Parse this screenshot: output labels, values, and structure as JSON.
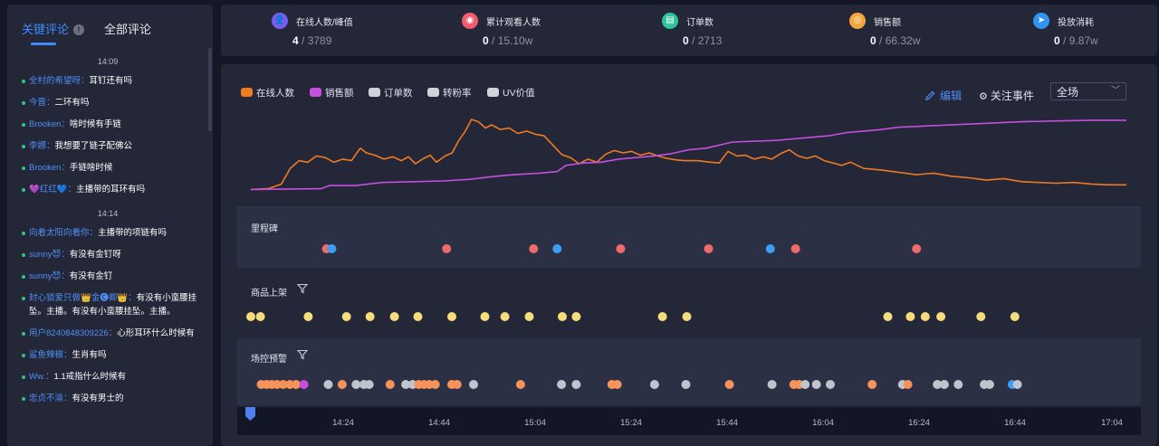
{
  "left_panel": {
    "tabs": [
      {
        "label": "关键评论",
        "active": true
      },
      {
        "label": "全部评论",
        "active": false
      }
    ],
    "info_glyph": "!",
    "comments": [
      {
        "type": "time",
        "text": "14:09"
      },
      {
        "type": "comment",
        "user": "全村的希望呀：",
        "text": "耳钉还有吗"
      },
      {
        "type": "comment",
        "user": "今晋：",
        "text": "二环有吗"
      },
      {
        "type": "comment",
        "user": "Brooken：",
        "text": "啥时候有手链"
      },
      {
        "type": "comment",
        "user": "李娜：",
        "text": "我想要了链子配佛公"
      },
      {
        "type": "comment",
        "user": "Brooken：",
        "text": "手链啥时候"
      },
      {
        "type": "comment",
        "user": "💜红红💙：",
        "text": "主播带的耳环有吗"
      },
      {
        "type": "time",
        "text": "14:14"
      },
      {
        "type": "comment",
        "user": "向着太阳向着你：",
        "text": "主播带的项链有吗"
      },
      {
        "type": "comment",
        "user": "sunny😈：",
        "text": "有没有金钉呀"
      },
      {
        "type": "comment",
        "user": "sunny😈：",
        "text": "有没有金钉"
      },
      {
        "type": "comment",
        "user": "封心锁爱只做👑金🅒卿👑：",
        "text": "有没有小蛮腰挂坠。主播。有没有小蛮腰挂坠。主播。"
      },
      {
        "type": "comment",
        "user": "用户8240848309226：",
        "text": "心形耳环什么时候有"
      },
      {
        "type": "comment",
        "user": "鲨鱼辣椒：",
        "text": "生肖有吗"
      },
      {
        "type": "comment",
        "user": "Ww.：",
        "text": "1.1戒指什么时候有"
      },
      {
        "type": "comment",
        "user": "忠贞不渝：",
        "text": "有没有男士的"
      }
    ]
  },
  "stats": [
    {
      "icon": "user-icon",
      "glyph": "👤",
      "color": "#7a5cf5",
      "label": "在线人数/峰值",
      "value": "4",
      "total": " / 3789"
    },
    {
      "icon": "eye-icon",
      "glyph": "◉",
      "color": "#f25b6b",
      "label": "累计观看人数",
      "value": "0",
      "total": " / 15.10w"
    },
    {
      "icon": "order-icon",
      "glyph": "▤",
      "color": "#2fc59a",
      "label": "订单数",
      "value": "0",
      "total": " / 2713"
    },
    {
      "icon": "coin-icon",
      "glyph": "◎",
      "color": "#f5a63b",
      "label": "销售额",
      "value": "0",
      "total": " / 66.32w"
    },
    {
      "icon": "send-icon",
      "glyph": "➤",
      "color": "#2f94f2",
      "label": "投放消耗",
      "value": "0",
      "total": " / 9.87w"
    }
  ],
  "legend": [
    {
      "label": "在线人数",
      "color": "#f07a22",
      "active": true
    },
    {
      "label": "销售额",
      "color": "#c64fe0",
      "active": true
    },
    {
      "label": "订单数",
      "color": "#cfd3dc",
      "active": false
    },
    {
      "label": "转粉率",
      "color": "#cfd3dc",
      "active": false
    },
    {
      "label": "UV价值",
      "color": "#cfd3dc",
      "active": false
    }
  ],
  "controls": {
    "edit_label": "编辑",
    "follow_label": "关注事件",
    "scope_select": "全场"
  },
  "lanes": [
    {
      "title": "里程碑",
      "has_filter": false
    },
    {
      "title": "商品上架",
      "has_filter": true
    },
    {
      "title": "场控预警",
      "has_filter": true
    }
  ],
  "chart_data": {
    "type": "line",
    "time_range": [
      "13:59",
      "17:04"
    ],
    "x_ticks": [
      "14:24",
      "14:44",
      "15:04",
      "15:24",
      "15:44",
      "16:04",
      "16:24",
      "16:44",
      "17:04"
    ],
    "ylim": [
      0,
      1
    ],
    "series": [
      {
        "name": "在线人数",
        "color": "#f07a22",
        "points": [
          [
            0,
            0.03
          ],
          [
            0.02,
            0.04
          ],
          [
            0.035,
            0.1
          ],
          [
            0.045,
            0.3
          ],
          [
            0.055,
            0.4
          ],
          [
            0.065,
            0.38
          ],
          [
            0.075,
            0.46
          ],
          [
            0.085,
            0.44
          ],
          [
            0.095,
            0.38
          ],
          [
            0.105,
            0.42
          ],
          [
            0.115,
            0.4
          ],
          [
            0.125,
            0.56
          ],
          [
            0.132,
            0.5
          ],
          [
            0.142,
            0.47
          ],
          [
            0.152,
            0.42
          ],
          [
            0.162,
            0.45
          ],
          [
            0.172,
            0.4
          ],
          [
            0.18,
            0.45
          ],
          [
            0.188,
            0.36
          ],
          [
            0.196,
            0.42
          ],
          [
            0.205,
            0.47
          ],
          [
            0.212,
            0.38
          ],
          [
            0.222,
            0.46
          ],
          [
            0.23,
            0.5
          ],
          [
            0.237,
            0.65
          ],
          [
            0.245,
            0.78
          ],
          [
            0.252,
            0.93
          ],
          [
            0.26,
            0.9
          ],
          [
            0.268,
            0.82
          ],
          [
            0.275,
            0.86
          ],
          [
            0.285,
            0.8
          ],
          [
            0.295,
            0.82
          ],
          [
            0.305,
            0.75
          ],
          [
            0.315,
            0.78
          ],
          [
            0.325,
            0.74
          ],
          [
            0.335,
            0.72
          ],
          [
            0.345,
            0.6
          ],
          [
            0.355,
            0.48
          ],
          [
            0.365,
            0.44
          ],
          [
            0.375,
            0.36
          ],
          [
            0.385,
            0.42
          ],
          [
            0.395,
            0.38
          ],
          [
            0.405,
            0.48
          ],
          [
            0.415,
            0.53
          ],
          [
            0.425,
            0.5
          ],
          [
            0.435,
            0.52
          ],
          [
            0.445,
            0.47
          ],
          [
            0.455,
            0.5
          ],
          [
            0.465,
            0.46
          ],
          [
            0.475,
            0.43
          ],
          [
            0.485,
            0.41
          ],
          [
            0.495,
            0.4
          ],
          [
            0.51,
            0.4
          ],
          [
            0.525,
            0.38
          ],
          [
            0.535,
            0.37
          ],
          [
            0.545,
            0.52
          ],
          [
            0.555,
            0.46
          ],
          [
            0.565,
            0.47
          ],
          [
            0.575,
            0.42
          ],
          [
            0.585,
            0.45
          ],
          [
            0.595,
            0.42
          ],
          [
            0.605,
            0.49
          ],
          [
            0.615,
            0.54
          ],
          [
            0.625,
            0.46
          ],
          [
            0.635,
            0.43
          ],
          [
            0.645,
            0.46
          ],
          [
            0.655,
            0.4
          ],
          [
            0.665,
            0.37
          ],
          [
            0.675,
            0.34
          ],
          [
            0.685,
            0.38
          ],
          [
            0.7,
            0.3
          ],
          [
            0.72,
            0.28
          ],
          [
            0.74,
            0.25
          ],
          [
            0.76,
            0.22
          ],
          [
            0.78,
            0.24
          ],
          [
            0.8,
            0.2
          ],
          [
            0.82,
            0.18
          ],
          [
            0.84,
            0.15
          ],
          [
            0.86,
            0.17
          ],
          [
            0.88,
            0.13
          ],
          [
            0.9,
            0.12
          ],
          [
            0.92,
            0.11
          ],
          [
            0.94,
            0.12
          ],
          [
            0.96,
            0.1
          ],
          [
            0.98,
            0.09
          ],
          [
            1,
            0.09
          ]
        ]
      },
      {
        "name": "销售额",
        "color": "#c64fe0",
        "points": [
          [
            0,
            0.03
          ],
          [
            0.08,
            0.04
          ],
          [
            0.09,
            0.08
          ],
          [
            0.12,
            0.08
          ],
          [
            0.15,
            0.12
          ],
          [
            0.22,
            0.14
          ],
          [
            0.25,
            0.16
          ],
          [
            0.28,
            0.2
          ],
          [
            0.3,
            0.22
          ],
          [
            0.33,
            0.24
          ],
          [
            0.35,
            0.26
          ],
          [
            0.36,
            0.34
          ],
          [
            0.38,
            0.37
          ],
          [
            0.4,
            0.38
          ],
          [
            0.42,
            0.42
          ],
          [
            0.44,
            0.44
          ],
          [
            0.46,
            0.46
          ],
          [
            0.48,
            0.49
          ],
          [
            0.5,
            0.54
          ],
          [
            0.52,
            0.56
          ],
          [
            0.55,
            0.64
          ],
          [
            0.6,
            0.66
          ],
          [
            0.62,
            0.68
          ],
          [
            0.66,
            0.72
          ],
          [
            0.68,
            0.76
          ],
          [
            0.7,
            0.78
          ],
          [
            0.72,
            0.8
          ],
          [
            0.74,
            0.83
          ],
          [
            0.76,
            0.84
          ],
          [
            0.8,
            0.86
          ],
          [
            0.84,
            0.88
          ],
          [
            0.88,
            0.9
          ],
          [
            0.92,
            0.91
          ],
          [
            0.96,
            0.92
          ],
          [
            1,
            0.92
          ]
        ]
      }
    ],
    "milestones": [
      {
        "t": 0.087,
        "color": "#ef6b6b"
      },
      {
        "t": 0.093,
        "color": "#3d9df2"
      },
      {
        "t": 0.225,
        "color": "#ef6b6b"
      },
      {
        "t": 0.325,
        "color": "#ef6b6b"
      },
      {
        "t": 0.352,
        "color": "#3d9df2"
      },
      {
        "t": 0.425,
        "color": "#ef6b6b"
      },
      {
        "t": 0.526,
        "color": "#ef6b6b"
      },
      {
        "t": 0.597,
        "color": "#3d9df2"
      },
      {
        "t": 0.626,
        "color": "#ef6b6b"
      },
      {
        "t": 0.765,
        "color": "#ef6b6b"
      }
    ],
    "product_listings": [
      0.0,
      0.011,
      0.066,
      0.11,
      0.137,
      0.165,
      0.192,
      0.231,
      0.269,
      0.292,
      0.32,
      0.358,
      0.374,
      0.473,
      0.501,
      0.732,
      0.758,
      0.775,
      0.793,
      0.839,
      0.878
    ],
    "control_alerts": [
      {
        "t": 0.012,
        "color": "#f5935a"
      },
      {
        "t": 0.018,
        "color": "#f5935a"
      },
      {
        "t": 0.024,
        "color": "#f5935a"
      },
      {
        "t": 0.03,
        "color": "#f5935a"
      },
      {
        "t": 0.037,
        "color": "#f5935a"
      },
      {
        "t": 0.045,
        "color": "#f5935a"
      },
      {
        "t": 0.052,
        "color": "#f5935a"
      },
      {
        "t": 0.061,
        "color": "#c64fe0"
      },
      {
        "t": 0.089,
        "color": "#c0c4cd"
      },
      {
        "t": 0.105,
        "color": "#f5935a"
      },
      {
        "t": 0.121,
        "color": "#c0c4cd"
      },
      {
        "t": 0.13,
        "color": "#c0c4cd"
      },
      {
        "t": 0.136,
        "color": "#c0c4cd"
      },
      {
        "t": 0.16,
        "color": "#f5935a"
      },
      {
        "t": 0.178,
        "color": "#c0c4cd"
      },
      {
        "t": 0.186,
        "color": "#c0c4cd"
      },
      {
        "t": 0.193,
        "color": "#f5935a"
      },
      {
        "t": 0.199,
        "color": "#f5935a"
      },
      {
        "t": 0.205,
        "color": "#f5935a"
      },
      {
        "t": 0.212,
        "color": "#f5935a"
      },
      {
        "t": 0.231,
        "color": "#f5935a"
      },
      {
        "t": 0.237,
        "color": "#f5935a"
      },
      {
        "t": 0.256,
        "color": "#c0c4cd"
      },
      {
        "t": 0.31,
        "color": "#f5935a"
      },
      {
        "t": 0.357,
        "color": "#c0c4cd"
      },
      {
        "t": 0.374,
        "color": "#c0c4cd"
      },
      {
        "t": 0.415,
        "color": "#f5935a"
      },
      {
        "t": 0.421,
        "color": "#f5935a"
      },
      {
        "t": 0.464,
        "color": "#c0c4cd"
      },
      {
        "t": 0.5,
        "color": "#c0c4cd"
      },
      {
        "t": 0.55,
        "color": "#f5935a"
      },
      {
        "t": 0.599,
        "color": "#c0c4cd"
      },
      {
        "t": 0.624,
        "color": "#f5935a"
      },
      {
        "t": 0.63,
        "color": "#f5935a"
      },
      {
        "t": 0.637,
        "color": "#c0c4cd"
      },
      {
        "t": 0.65,
        "color": "#c0c4cd"
      },
      {
        "t": 0.666,
        "color": "#c0c4cd"
      },
      {
        "t": 0.714,
        "color": "#f5935a"
      },
      {
        "t": 0.749,
        "color": "#c0c4cd"
      },
      {
        "t": 0.755,
        "color": "#f5935a"
      },
      {
        "t": 0.789,
        "color": "#c0c4cd"
      },
      {
        "t": 0.797,
        "color": "#c0c4cd"
      },
      {
        "t": 0.813,
        "color": "#c0c4cd"
      },
      {
        "t": 0.843,
        "color": "#c0c4cd"
      },
      {
        "t": 0.849,
        "color": "#c0c4cd"
      },
      {
        "t": 0.875,
        "color": "#3d9df2"
      },
      {
        "t": 0.881,
        "color": "#c0c4cd"
      }
    ]
  }
}
